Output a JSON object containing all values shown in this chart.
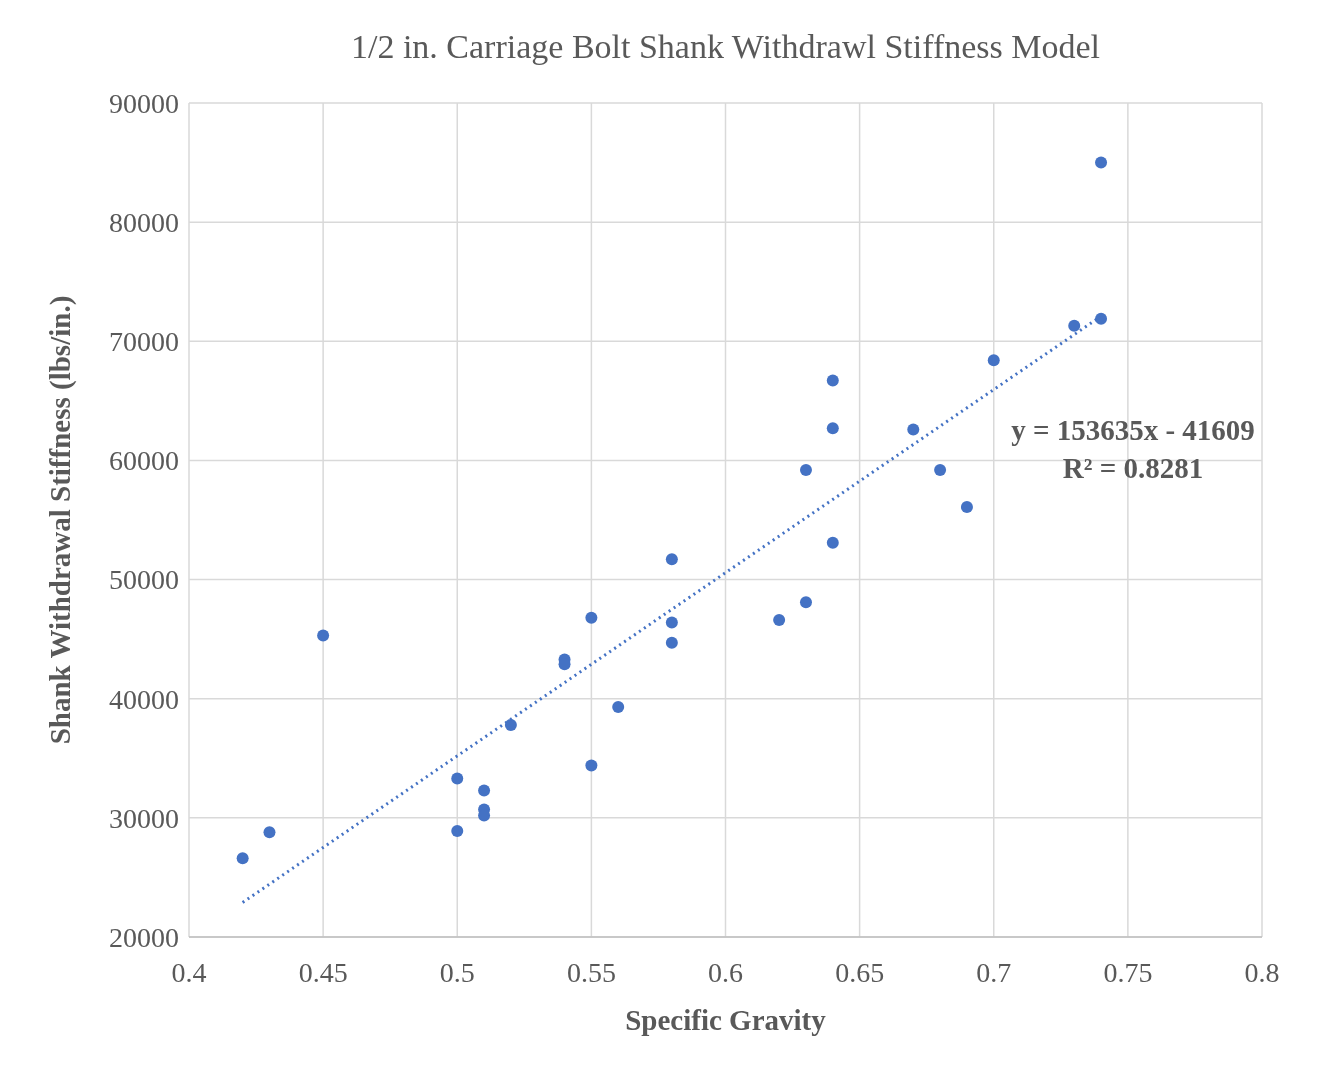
{
  "chart_data": {
    "type": "scatter",
    "title": "1/2 in. Carriage Bolt Shank Withdrawl Stiffness Model",
    "xlabel": "Specific Gravity",
    "ylabel": "Shank Withdrawal Stiffness (lbs/in.)",
    "xlim": [
      0.4,
      0.8
    ],
    "xticks": [
      0.4,
      0.45,
      0.5,
      0.55,
      0.6,
      0.65,
      0.7,
      0.75,
      0.8
    ],
    "ylim": [
      20000,
      90000
    ],
    "yticks": [
      20000,
      30000,
      40000,
      50000,
      60000,
      70000,
      80000,
      90000
    ],
    "grid": true,
    "marker": "circle",
    "annotations": [
      "y = 153635x - 41609",
      "R² = 0.8281"
    ],
    "series": [
      {
        "color": "#4472c4",
        "x": [
          0.42,
          0.43,
          0.45,
          0.5,
          0.5,
          0.51,
          0.51,
          0.51,
          0.52,
          0.54,
          0.54,
          0.55,
          0.55,
          0.56,
          0.58,
          0.58,
          0.58,
          0.62,
          0.63,
          0.63,
          0.64,
          0.64,
          0.64,
          0.67,
          0.68,
          0.69,
          0.7,
          0.73,
          0.74,
          0.74
        ],
        "values": [
          26600,
          28800,
          45300,
          33300,
          28900,
          32300,
          30700,
          30200,
          37800,
          43300,
          42900,
          46800,
          34400,
          39300,
          51700,
          46400,
          44700,
          46600,
          48100,
          59200,
          66700,
          62700,
          53100,
          62600,
          59200,
          56100,
          68400,
          71300,
          71900,
          85000
        ]
      },
      {
        "type": "line",
        "color": "#4472c4",
        "line_style": "dotted",
        "marker": "none",
        "x": [
          0.42,
          0.74
        ],
        "values": [
          22900,
          72100
        ]
      }
    ]
  }
}
